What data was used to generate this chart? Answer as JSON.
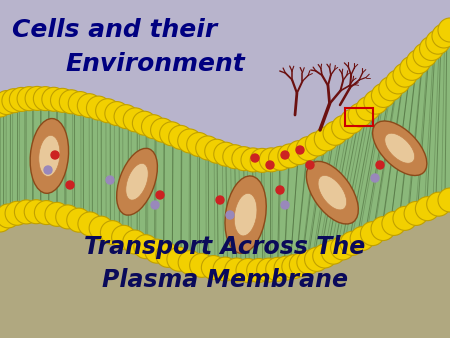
{
  "title1_line1": "Cells and their",
  "title1_line2": "Environment",
  "title2_line1": "Transport Across The",
  "title2_line2": "Plasma Membrane",
  "bg_lavender": "#b8b4cc",
  "bg_tan": "#b0a880",
  "title1_color": "#000080",
  "title2_color": "#0a0a5a",
  "fig_width": 4.5,
  "fig_height": 3.38,
  "dpi": 100,
  "yellow_ball": "#f2d000",
  "yellow_ball_edge": "#c0a000",
  "green_fill": "#8ab87a",
  "protein_brown": "#c4824a",
  "protein_tan": "#e8c89a",
  "glyco_color": "#6b1010",
  "red_dot": "#cc2222",
  "purple_dot": "#8877bb"
}
